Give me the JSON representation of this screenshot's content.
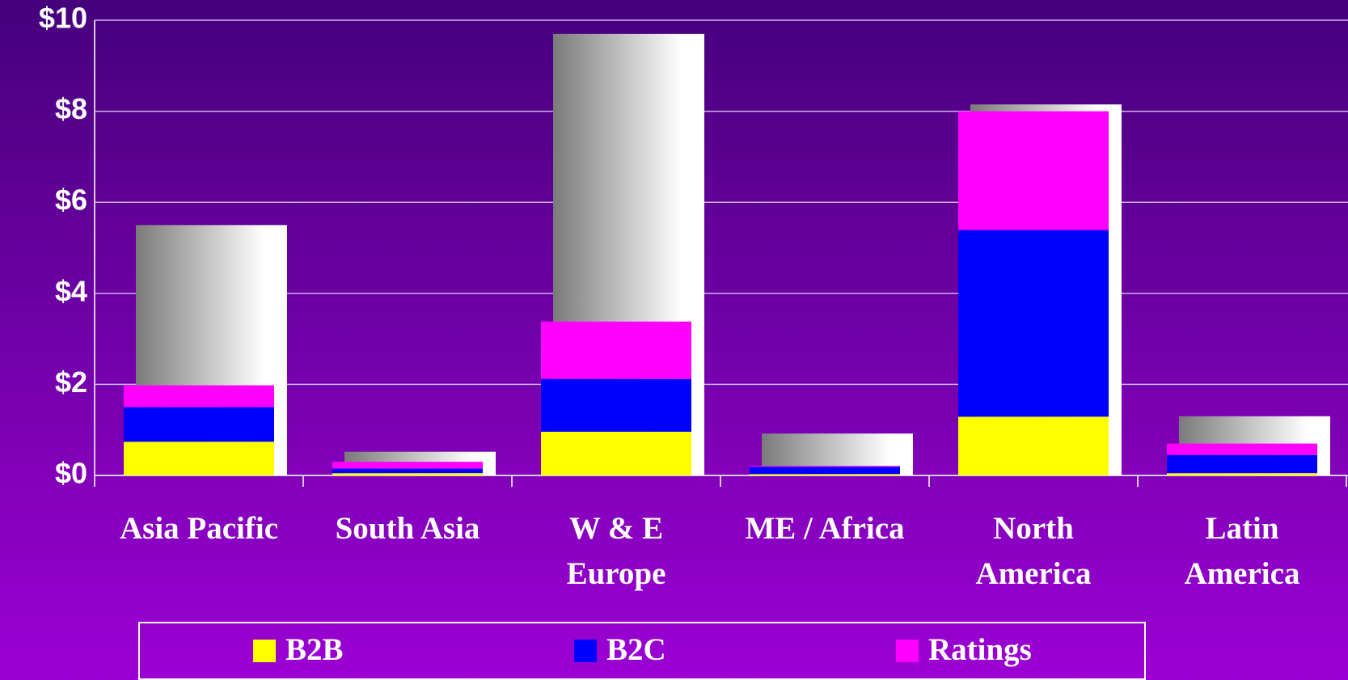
{
  "chart_data": {
    "type": "bar",
    "stacked": true,
    "categories": [
      "Asia Pacific",
      "South Asia",
      "W & E\nEurope",
      "ME / Africa",
      "North\nAmerica",
      "Latin\nAmerica"
    ],
    "background_series": {
      "values": [
        5.5,
        0.52,
        9.7,
        0.92,
        8.15,
        1.3
      ]
    },
    "series": [
      {
        "name": "B2B",
        "color": "#ffff00",
        "values": [
          0.74,
          0.05,
          0.96,
          0.03,
          1.29,
          0.05
        ]
      },
      {
        "name": "B2C",
        "color": "#0000ff",
        "values": [
          0.76,
          0.1,
          1.16,
          0.16,
          4.1,
          0.4
        ]
      },
      {
        "name": "Ratings",
        "color": "#ff00ff",
        "values": [
          0.48,
          0.15,
          1.26,
          0.02,
          2.61,
          0.25
        ]
      }
    ],
    "ylim": [
      0,
      10
    ],
    "yticks": [
      {
        "value": 0,
        "label": "$0"
      },
      {
        "value": 2,
        "label": "$2"
      },
      {
        "value": 4,
        "label": "$4"
      },
      {
        "value": 6,
        "label": "$6"
      },
      {
        "value": 8,
        "label": "$8"
      },
      {
        "value": 10,
        "label": "$10"
      }
    ],
    "grid": true
  }
}
